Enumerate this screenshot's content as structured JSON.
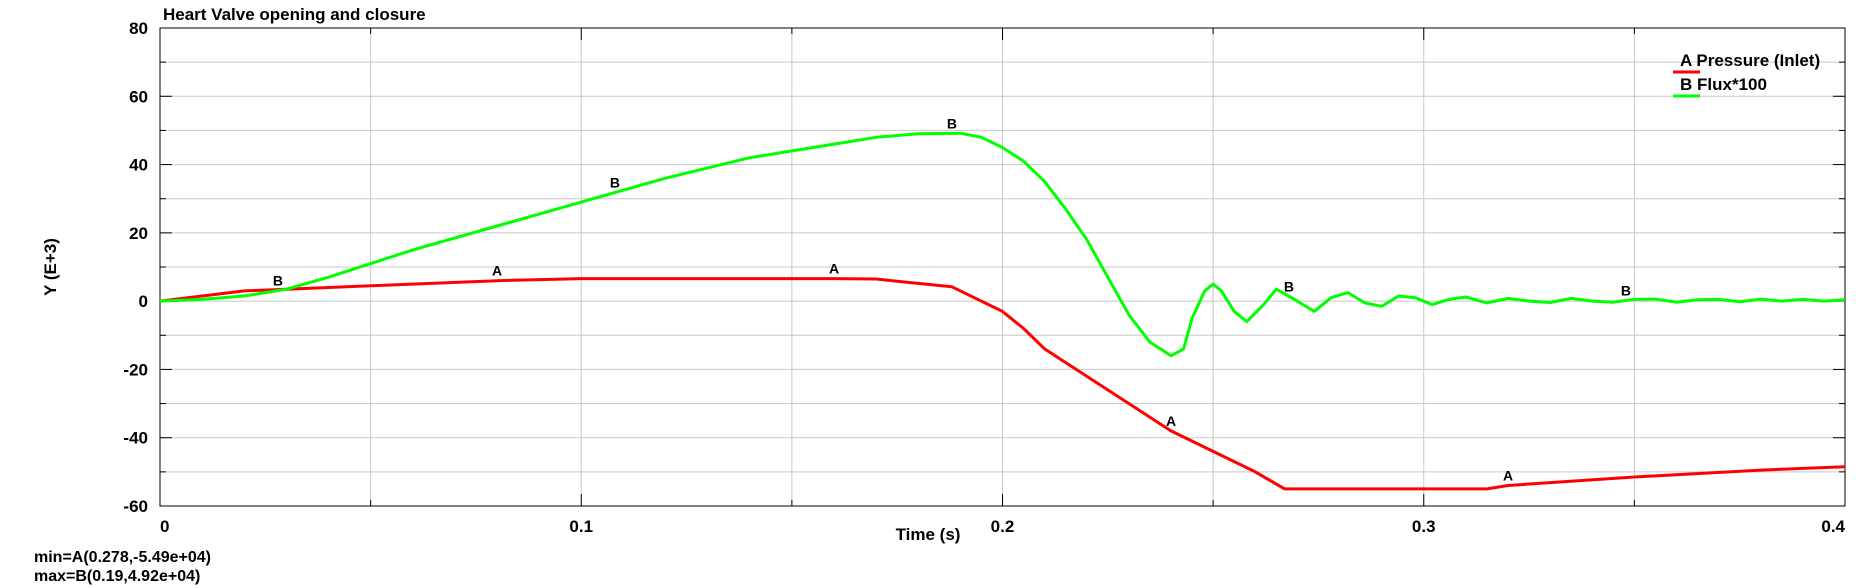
{
  "chart_data": {
    "type": "line",
    "title": "Heart Valve opening and closure",
    "xlabel": "Time (s)",
    "ylabel": "Y (E+3)",
    "xlim": [
      0,
      0.4
    ],
    "ylim": [
      -60,
      80
    ],
    "x_ticks": [
      0,
      0.1,
      0.2,
      0.3,
      0.4
    ],
    "x_tick_labels": [
      "0",
      "0.1",
      "0.2",
      "0.3",
      "0.4"
    ],
    "y_ticks": [
      -60,
      -40,
      -20,
      0,
      20,
      40,
      60,
      80
    ],
    "y_tick_labels": [
      "-60",
      "-40",
      "-20",
      "0",
      "20",
      "40",
      "60",
      "80"
    ],
    "grid": true,
    "legend_position": "top-right",
    "series": [
      {
        "name": "Pressure (Inlet)",
        "marker": "A",
        "color": "#ff0000",
        "x": [
          0,
          0.02,
          0.03,
          0.05,
          0.08,
          0.1,
          0.13,
          0.16,
          0.17,
          0.175,
          0.18,
          0.188,
          0.2,
          0.205,
          0.21,
          0.215,
          0.22,
          0.24,
          0.26,
          0.267,
          0.27,
          0.3,
          0.315,
          0.32,
          0.35,
          0.38,
          0.4
        ],
        "y": [
          0,
          3,
          3.5,
          4.5,
          6,
          6.6,
          6.6,
          6.6,
          6.5,
          5.8,
          5.2,
          4.2,
          -3,
          -8,
          -14,
          -18,
          -22,
          -38,
          -50,
          -55,
          -55,
          -55,
          -55,
          -54,
          -51.5,
          -49.5,
          -48.5
        ],
        "label_x": [
          0.08,
          0.16,
          0.24,
          0.32
        ]
      },
      {
        "name": "Flux*100",
        "marker": "B",
        "color": "#00ff00",
        "x": [
          0,
          0.01,
          0.02,
          0.03,
          0.04,
          0.05,
          0.06,
          0.08,
          0.1,
          0.12,
          0.14,
          0.16,
          0.17,
          0.18,
          0.19,
          0.195,
          0.2,
          0.205,
          0.21,
          0.215,
          0.22,
          0.225,
          0.23,
          0.235,
          0.24,
          0.243,
          0.245,
          0.248,
          0.25,
          0.252,
          0.255,
          0.258,
          0.262,
          0.265,
          0.27,
          0.274,
          0.278,
          0.282,
          0.286,
          0.29,
          0.294,
          0.298,
          0.302,
          0.306,
          0.31,
          0.315,
          0.32,
          0.325,
          0.33,
          0.335,
          0.34,
          0.345,
          0.35,
          0.355,
          0.36,
          0.365,
          0.37,
          0.375,
          0.38,
          0.385,
          0.39,
          0.395,
          0.4
        ],
        "y": [
          0,
          0.5,
          1.5,
          3.5,
          7,
          11,
          15,
          22,
          29,
          36,
          42,
          46,
          48,
          49,
          49.2,
          48,
          45,
          41,
          35,
          27,
          18,
          7,
          -4,
          -12,
          -16,
          -14,
          -5,
          3,
          5,
          3,
          -3,
          -6,
          -1,
          3.5,
          0,
          -3,
          1,
          2.5,
          -0.5,
          -1.5,
          1.5,
          1,
          -1,
          0.5,
          1.2,
          -0.5,
          0.8,
          0,
          -0.4,
          0.8,
          0,
          -0.3,
          0.5,
          0.6,
          -0.3,
          0.4,
          0.5,
          -0.2,
          0.6,
          0,
          0.5,
          0,
          0.4
        ],
        "label_x": [
          0.028,
          0.108,
          0.188,
          0.268,
          0.348
        ]
      }
    ],
    "annotations": [
      "min=A(0.278,-5.49e+04)",
      "max=B(0.19,4.92e+04)"
    ]
  }
}
